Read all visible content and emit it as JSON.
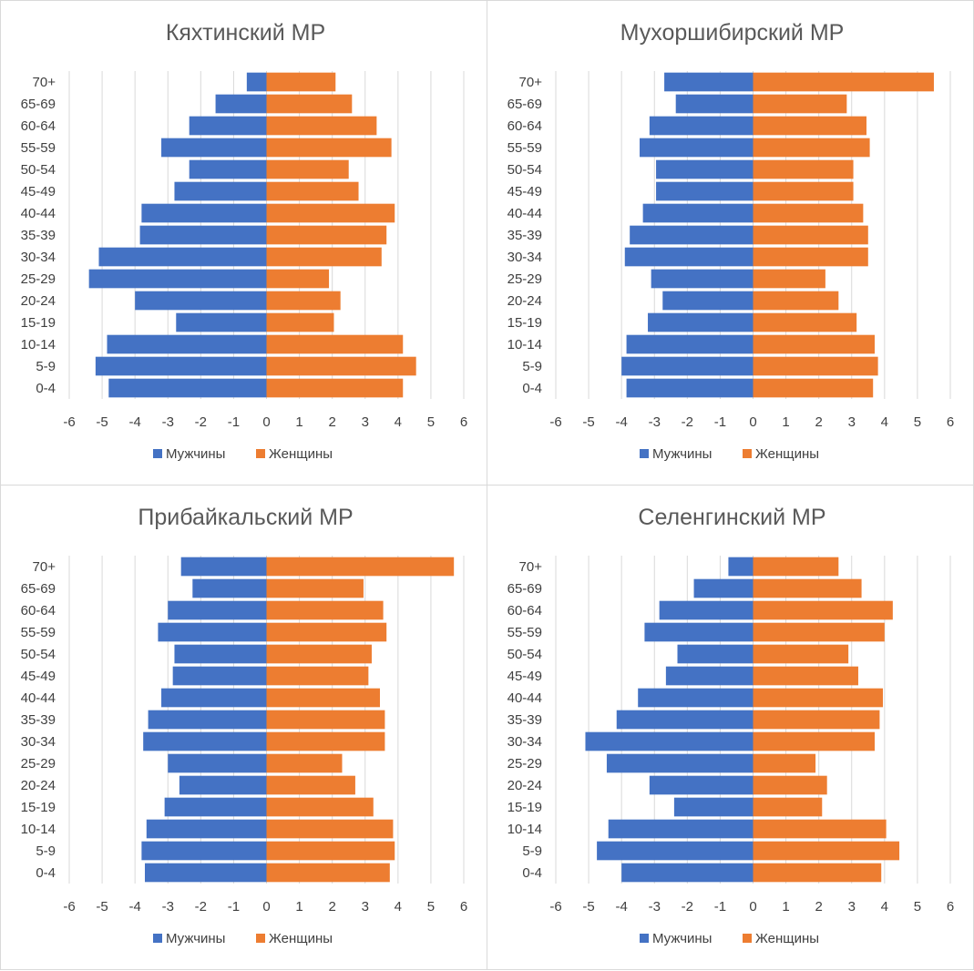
{
  "colors": {
    "male": "#4472C4",
    "female": "#ED7D31",
    "grid": "#d9d9d9",
    "text": "#404040",
    "title": "#595959"
  },
  "chart_data": [
    {
      "type": "bar",
      "title": "Кяхтинский МР",
      "categories": [
        "70+",
        "65-69",
        "60-64",
        "55-59",
        "50-54",
        "45-49",
        "40-44",
        "35-39",
        "30-34",
        "25-29",
        "20-24",
        "15-19",
        "10-14",
        "5-9",
        "0-4"
      ],
      "xlim": [
        -6,
        6
      ],
      "xticks": [
        "-6",
        "-5",
        "-4",
        "-3",
        "-2",
        "-1",
        "0",
        "1",
        "2",
        "3",
        "4",
        "5",
        "6"
      ],
      "series": [
        {
          "name": "Мужчины",
          "values": [
            -0.6,
            -1.55,
            -2.35,
            -3.2,
            -2.35,
            -2.8,
            -3.8,
            -3.85,
            -5.1,
            -5.4,
            -4.0,
            -2.75,
            -4.85,
            -5.2,
            -4.8
          ]
        },
        {
          "name": "Женщины",
          "values": [
            2.1,
            2.6,
            3.35,
            3.8,
            2.5,
            2.8,
            3.9,
            3.65,
            3.5,
            1.9,
            2.25,
            2.05,
            4.15,
            4.55,
            4.15
          ]
        }
      ],
      "legend": "bottom",
      "grid": true
    },
    {
      "type": "bar",
      "title": "Мухоршибирский МР",
      "categories": [
        "70+",
        "65-69",
        "60-64",
        "55-59",
        "50-54",
        "45-49",
        "40-44",
        "35-39",
        "30-34",
        "25-29",
        "20-24",
        "15-19",
        "10-14",
        "5-9",
        "0-4"
      ],
      "xlim": [
        -6,
        6
      ],
      "xticks": [
        "-6",
        "-5",
        "-4",
        "-3",
        "-2",
        "-1",
        "0",
        "1",
        "2",
        "3",
        "4",
        "5",
        "6"
      ],
      "series": [
        {
          "name": "Мужчины",
          "values": [
            -2.7,
            -2.35,
            -3.15,
            -3.45,
            -2.95,
            -2.95,
            -3.35,
            -3.75,
            -3.9,
            -3.1,
            -2.75,
            -3.2,
            -3.85,
            -4.0,
            -3.85
          ]
        },
        {
          "name": "Женщины",
          "values": [
            5.5,
            2.85,
            3.45,
            3.55,
            3.05,
            3.05,
            3.35,
            3.5,
            3.5,
            2.2,
            2.6,
            3.15,
            3.7,
            3.8,
            3.65
          ]
        }
      ],
      "legend": "bottom",
      "grid": true
    },
    {
      "type": "bar",
      "title": "Прибайкальский МР",
      "categories": [
        "70+",
        "65-69",
        "60-64",
        "55-59",
        "50-54",
        "45-49",
        "40-44",
        "35-39",
        "30-34",
        "25-29",
        "20-24",
        "15-19",
        "10-14",
        "5-9",
        "0-4"
      ],
      "xlim": [
        -6,
        6
      ],
      "xticks": [
        "-6",
        "-5",
        "-4",
        "-3",
        "-2",
        "-1",
        "0",
        "1",
        "2",
        "3",
        "4",
        "5",
        "6"
      ],
      "series": [
        {
          "name": "Мужчины",
          "values": [
            -2.6,
            -2.25,
            -3.0,
            -3.3,
            -2.8,
            -2.85,
            -3.2,
            -3.6,
            -3.75,
            -3.0,
            -2.65,
            -3.1,
            -3.65,
            -3.8,
            -3.7
          ]
        },
        {
          "name": "Женщины",
          "values": [
            5.7,
            2.95,
            3.55,
            3.65,
            3.2,
            3.1,
            3.45,
            3.6,
            3.6,
            2.3,
            2.7,
            3.25,
            3.85,
            3.9,
            3.75
          ]
        }
      ],
      "legend": "bottom",
      "grid": true
    },
    {
      "type": "bar",
      "title": "Селенгинский МР",
      "categories": [
        "70+",
        "65-69",
        "60-64",
        "55-59",
        "50-54",
        "45-49",
        "40-44",
        "35-39",
        "30-34",
        "25-29",
        "20-24",
        "15-19",
        "10-14",
        "5-9",
        "0-4"
      ],
      "xlim": [
        -6,
        6
      ],
      "xticks": [
        "-6",
        "-5",
        "-4",
        "-3",
        "-2",
        "-1",
        "0",
        "1",
        "2",
        "3",
        "4",
        "5",
        "6"
      ],
      "series": [
        {
          "name": "Мужчины",
          "values": [
            -0.75,
            -1.8,
            -2.85,
            -3.3,
            -2.3,
            -2.65,
            -3.5,
            -4.15,
            -5.1,
            -4.45,
            -3.15,
            -2.4,
            -4.4,
            -4.75,
            -4.0
          ]
        },
        {
          "name": "Женщины",
          "values": [
            2.6,
            3.3,
            4.25,
            4.0,
            2.9,
            3.2,
            3.95,
            3.85,
            3.7,
            1.9,
            2.25,
            2.1,
            4.05,
            4.45,
            3.9
          ]
        }
      ],
      "legend": "bottom",
      "grid": true
    }
  ]
}
